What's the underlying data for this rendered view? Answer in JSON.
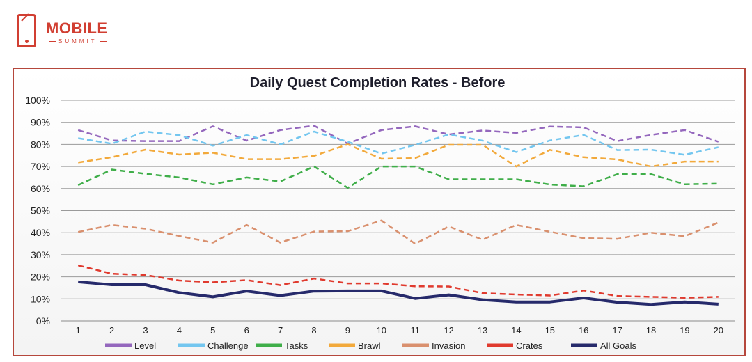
{
  "brand": {
    "name": "MOBILE",
    "sub": "SUMMIT"
  },
  "chart_data": {
    "type": "line",
    "title": "Daily Quest Completion Rates - Before",
    "xlabel": "",
    "ylabel": "",
    "x": [
      1,
      2,
      3,
      4,
      5,
      6,
      7,
      8,
      9,
      10,
      11,
      12,
      13,
      14,
      15,
      16,
      17,
      18,
      19,
      20
    ],
    "ylim": [
      0,
      100
    ],
    "yticks": [
      "0%",
      "10%",
      "20%",
      "30%",
      "40%",
      "50%",
      "60%",
      "70%",
      "80%",
      "90%",
      "100%"
    ],
    "grid": true,
    "legend": "bottom",
    "series": [
      {
        "name": "Level",
        "color": "#9467bd",
        "dashed": true,
        "values": [
          86.5,
          81.8,
          81.5,
          81.5,
          88.2,
          81.7,
          86.5,
          88.5,
          80.3,
          86.5,
          88.2,
          84.5,
          86.3,
          85.2,
          88.1,
          87.7,
          81.5,
          84.3,
          86.5,
          81.2
        ]
      },
      {
        "name": "Challenge",
        "color": "#73c6ef",
        "dashed": true,
        "values": [
          82.8,
          80.3,
          85.8,
          84.2,
          79.4,
          84.2,
          80.0,
          85.8,
          81.2,
          75.8,
          79.8,
          84.5,
          81.7,
          76.5,
          81.8,
          84.3,
          77.4,
          77.6,
          75.3,
          78.7
        ]
      },
      {
        "name": "Tasks",
        "color": "#3fae49",
        "dashed": true,
        "values": [
          61.5,
          68.6,
          66.7,
          65.0,
          61.9,
          65.0,
          63.2,
          70.0,
          60.3,
          70.0,
          70.0,
          64.2,
          64.2,
          64.2,
          61.8,
          61.0,
          66.5,
          66.5,
          61.9,
          62.2
        ]
      },
      {
        "name": "Brawl",
        "color": "#f2a93b",
        "dashed": true,
        "values": [
          71.8,
          74.2,
          77.6,
          75.4,
          76.2,
          73.3,
          73.3,
          74.8,
          80.0,
          73.5,
          73.8,
          79.8,
          79.8,
          70.0,
          77.5,
          74.2,
          73.2,
          70.0,
          72.2,
          72.2
        ]
      },
      {
        "name": "Invasion",
        "color": "#d9906e",
        "dashed": true,
        "values": [
          40.3,
          43.5,
          41.8,
          38.5,
          35.5,
          43.5,
          35.5,
          40.5,
          40.7,
          45.5,
          35.0,
          42.8,
          36.8,
          43.5,
          40.4,
          37.5,
          37.2,
          40.0,
          38.4,
          44.6
        ]
      },
      {
        "name": "Crates",
        "color": "#e03a2e",
        "dashed": true,
        "values": [
          25.2,
          21.4,
          20.8,
          18.3,
          17.5,
          18.5,
          16.2,
          19.2,
          17.0,
          17.0,
          15.7,
          15.6,
          12.6,
          12.0,
          11.5,
          13.8,
          11.3,
          10.9,
          10.5,
          10.9
        ]
      },
      {
        "name": "All Goals",
        "color": "#262a6b",
        "dashed": false,
        "values": [
          17.7,
          16.4,
          16.4,
          12.8,
          10.9,
          13.5,
          11.5,
          13.5,
          13.6,
          13.6,
          10.2,
          11.8,
          9.6,
          8.6,
          8.6,
          10.4,
          8.5,
          7.5,
          8.6,
          7.6
        ]
      }
    ]
  }
}
